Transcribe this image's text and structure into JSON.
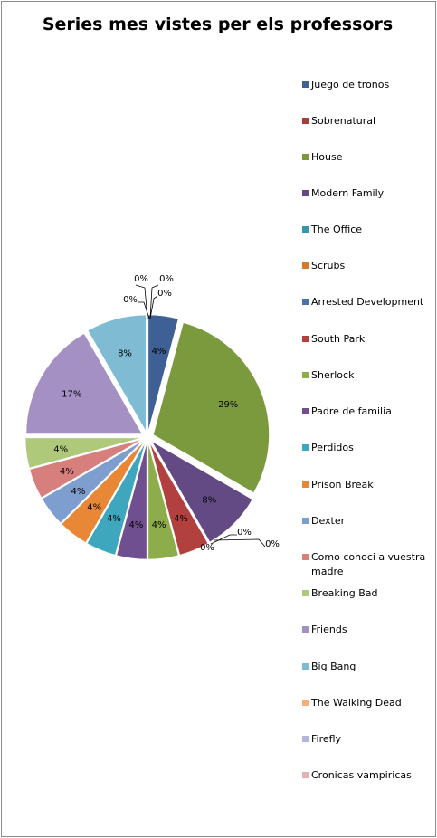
{
  "chart_data": {
    "type": "pie",
    "title": "Series mes vistes per els professors",
    "legend_position": "right",
    "categories": [
      "Juego de tronos",
      "Sobrenatural",
      "House",
      "Modern Family",
      "The Office",
      "Scrubs",
      "Arrested Development",
      "South Park",
      "Sherlock",
      "Padre de familia",
      "Perdidos",
      "Prison Break",
      "Dexter",
      "Como conoci a vuestra madre",
      "Breaking Bad",
      "Friends",
      "Big Bang",
      "The Walking Dead",
      "Firefly",
      "Cronicas vampiricas"
    ],
    "values": [
      1,
      0,
      7,
      2,
      0,
      0,
      0,
      1,
      1,
      1,
      1,
      1,
      1,
      1,
      1,
      4,
      2,
      0,
      0,
      0
    ],
    "data_labels": [
      "4%",
      "0%",
      "29%",
      "8%",
      "0%",
      "0%",
      "0%",
      "4%",
      "4%",
      "4%",
      "4%",
      "4%",
      "4%",
      "4%",
      "4%",
      "17%",
      "8%",
      "0%",
      "0%",
      "0%"
    ],
    "colors": [
      "#3E6095",
      "#A33E3B",
      "#7B9A3E",
      "#644A85",
      "#3796AC",
      "#D9792B",
      "#4A72A8",
      "#B2403E",
      "#8DAD4A",
      "#704F91",
      "#3EA6BD",
      "#E88735",
      "#7F9ED0",
      "#D67F7D",
      "#AFC97B",
      "#A490C2",
      "#7FBCD3",
      "#F6AE7A",
      "#B4B4DA",
      "#E6B1B0"
    ]
  }
}
